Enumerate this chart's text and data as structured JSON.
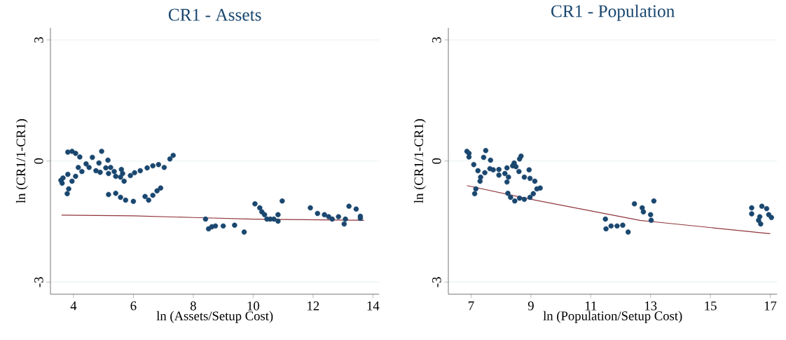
{
  "chart_data": [
    {
      "type": "scatter",
      "title": "CR1 - Assets",
      "xlabel": "ln (Assets/Setup Cost)",
      "ylabel": "ln (CR1/1-CR1)",
      "xlim": [
        3.23,
        14.21
      ],
      "ylim": [
        -3.3,
        3.3
      ],
      "xticks": [
        4,
        6,
        8,
        10,
        12,
        14
      ],
      "yticks": [
        -3,
        0,
        3
      ],
      "grid": "y",
      "series": [
        {
          "marker": "circle",
          "color": "#1a476f",
          "x": [
            3.81,
            3.95,
            4.07,
            4.21,
            4.63,
            4.94,
            5.15,
            4.16,
            4.28,
            4.42,
            4.52,
            4.85,
            4.75,
            4.89,
            5.08,
            5.24,
            5.17,
            5.41,
            5.36,
            5.6,
            5.64,
            5.69,
            5.57,
            3.58,
            3.65,
            3.81,
            4.07,
            3.95,
            3.62,
            3.84,
            3.79,
            5.9,
            6.04,
            6.23,
            6.46,
            6.65,
            6.84,
            7.03,
            7.22,
            7.33,
            5.17,
            5.41,
            5.57,
            5.74,
            6.0,
            6.39,
            6.51,
            6.65,
            6.79,
            6.91,
            8.41,
            8.51,
            8.62,
            8.74,
            9.0,
            9.38,
            9.7,
            10.06,
            10.22,
            10.29,
            10.38,
            10.46,
            10.57,
            10.69,
            10.83,
            10.83,
            10.97,
            11.91,
            12.15,
            12.38,
            12.52,
            12.64,
            12.85,
            13.04,
            13.08,
            13.2,
            13.44,
            13.58,
            13.58
          ],
          "values": [
            0.22,
            0.24,
            0.19,
            0.1,
            0.09,
            0.24,
            0.02,
            -0.16,
            -0.26,
            -0.07,
            -0.16,
            -0.05,
            -0.24,
            -0.28,
            -0.17,
            -0.16,
            -0.31,
            -0.38,
            -0.26,
            -0.21,
            -0.31,
            -0.5,
            -0.4,
            -0.48,
            -0.42,
            -0.33,
            -0.38,
            -0.5,
            -0.55,
            -0.69,
            -0.81,
            -0.36,
            -0.29,
            -0.24,
            -0.17,
            -0.12,
            -0.09,
            -0.16,
            0.05,
            0.14,
            -0.83,
            -0.8,
            -0.9,
            -0.97,
            -1.0,
            -0.88,
            -0.97,
            -0.85,
            -0.74,
            -0.67,
            -1.44,
            -1.68,
            -1.63,
            -1.61,
            -1.61,
            -1.59,
            -1.76,
            -1.06,
            -1.16,
            -1.26,
            -1.33,
            -1.44,
            -1.44,
            -1.44,
            -1.33,
            -1.49,
            -0.99,
            -1.16,
            -1.3,
            -1.33,
            -1.38,
            -1.44,
            -1.38,
            -1.56,
            -1.44,
            -1.12,
            -1.19,
            -1.37,
            -1.42
          ]
        },
        {
          "type": "line",
          "marker": "none",
          "color": "#90353b",
          "x": [
            3.6,
            6,
            8,
            10,
            13.7
          ],
          "values": [
            -1.34,
            -1.36,
            -1.4,
            -1.44,
            -1.47
          ]
        }
      ]
    },
    {
      "type": "scatter",
      "title": "CR1 - Population",
      "xlabel": "ln (Population/Setup Cost)",
      "ylabel": "ln (CR1/1-CR1)",
      "xlim": [
        6.24,
        17.23
      ],
      "ylim": [
        -3.3,
        3.3
      ],
      "xticks": [
        7,
        9,
        11,
        13,
        15,
        17
      ],
      "yticks": [
        -3,
        0,
        3
      ],
      "grid": "y",
      "series": [
        {
          "marker": "circle",
          "color": "#1a476f",
          "x": [
            6.86,
            6.93,
            6.93,
            7.49,
            7.42,
            7.65,
            7.09,
            7.23,
            7.46,
            7.32,
            7.3,
            7.63,
            7.74,
            7.93,
            7.93,
            8.13,
            8.2,
            8.25,
            8.2,
            8.39,
            8.44,
            8.5,
            8.6,
            8.67,
            8.62,
            8.78,
            8.94,
            8.97,
            9.13,
            9.2,
            9.31,
            7.16,
            7.12,
            8.23,
            8.32,
            8.46,
            8.62,
            8.78,
            8.97,
            9.08,
            11.49,
            11.51,
            11.68,
            11.88,
            12.07,
            12.25,
            12.46,
            12.72,
            12.76,
            13.0,
            13.02,
            13.11,
            16.38,
            16.38,
            16.65,
            16.68,
            16.72,
            16.88,
            16.95,
            17.04,
            16.61
          ],
          "values": [
            0.24,
            0.19,
            0.1,
            0.26,
            0.09,
            0.02,
            -0.09,
            -0.24,
            -0.29,
            -0.4,
            -0.5,
            -0.19,
            -0.22,
            -0.21,
            -0.35,
            -0.31,
            -0.17,
            -0.4,
            -0.52,
            -0.12,
            -0.05,
            -0.14,
            -0.26,
            0.12,
            0.05,
            -0.4,
            -0.22,
            -0.43,
            -0.5,
            -0.69,
            -0.67,
            -0.69,
            -0.81,
            -0.8,
            -0.9,
            -0.99,
            -0.92,
            -0.95,
            -0.9,
            -0.81,
            -1.44,
            -1.68,
            -1.61,
            -1.61,
            -1.59,
            -1.76,
            -1.06,
            -1.16,
            -1.26,
            -1.33,
            -1.47,
            -0.99,
            -1.16,
            -1.31,
            -1.38,
            -1.56,
            -1.12,
            -1.18,
            -1.33,
            -1.4,
            -1.47
          ]
        },
        {
          "type": "line",
          "marker": "none",
          "color": "#90353b",
          "x": [
            6.86,
            9.01,
            12.65,
            13.02,
            17.0
          ],
          "values": [
            -0.61,
            -0.95,
            -1.47,
            -1.5,
            -1.8
          ]
        }
      ]
    }
  ]
}
